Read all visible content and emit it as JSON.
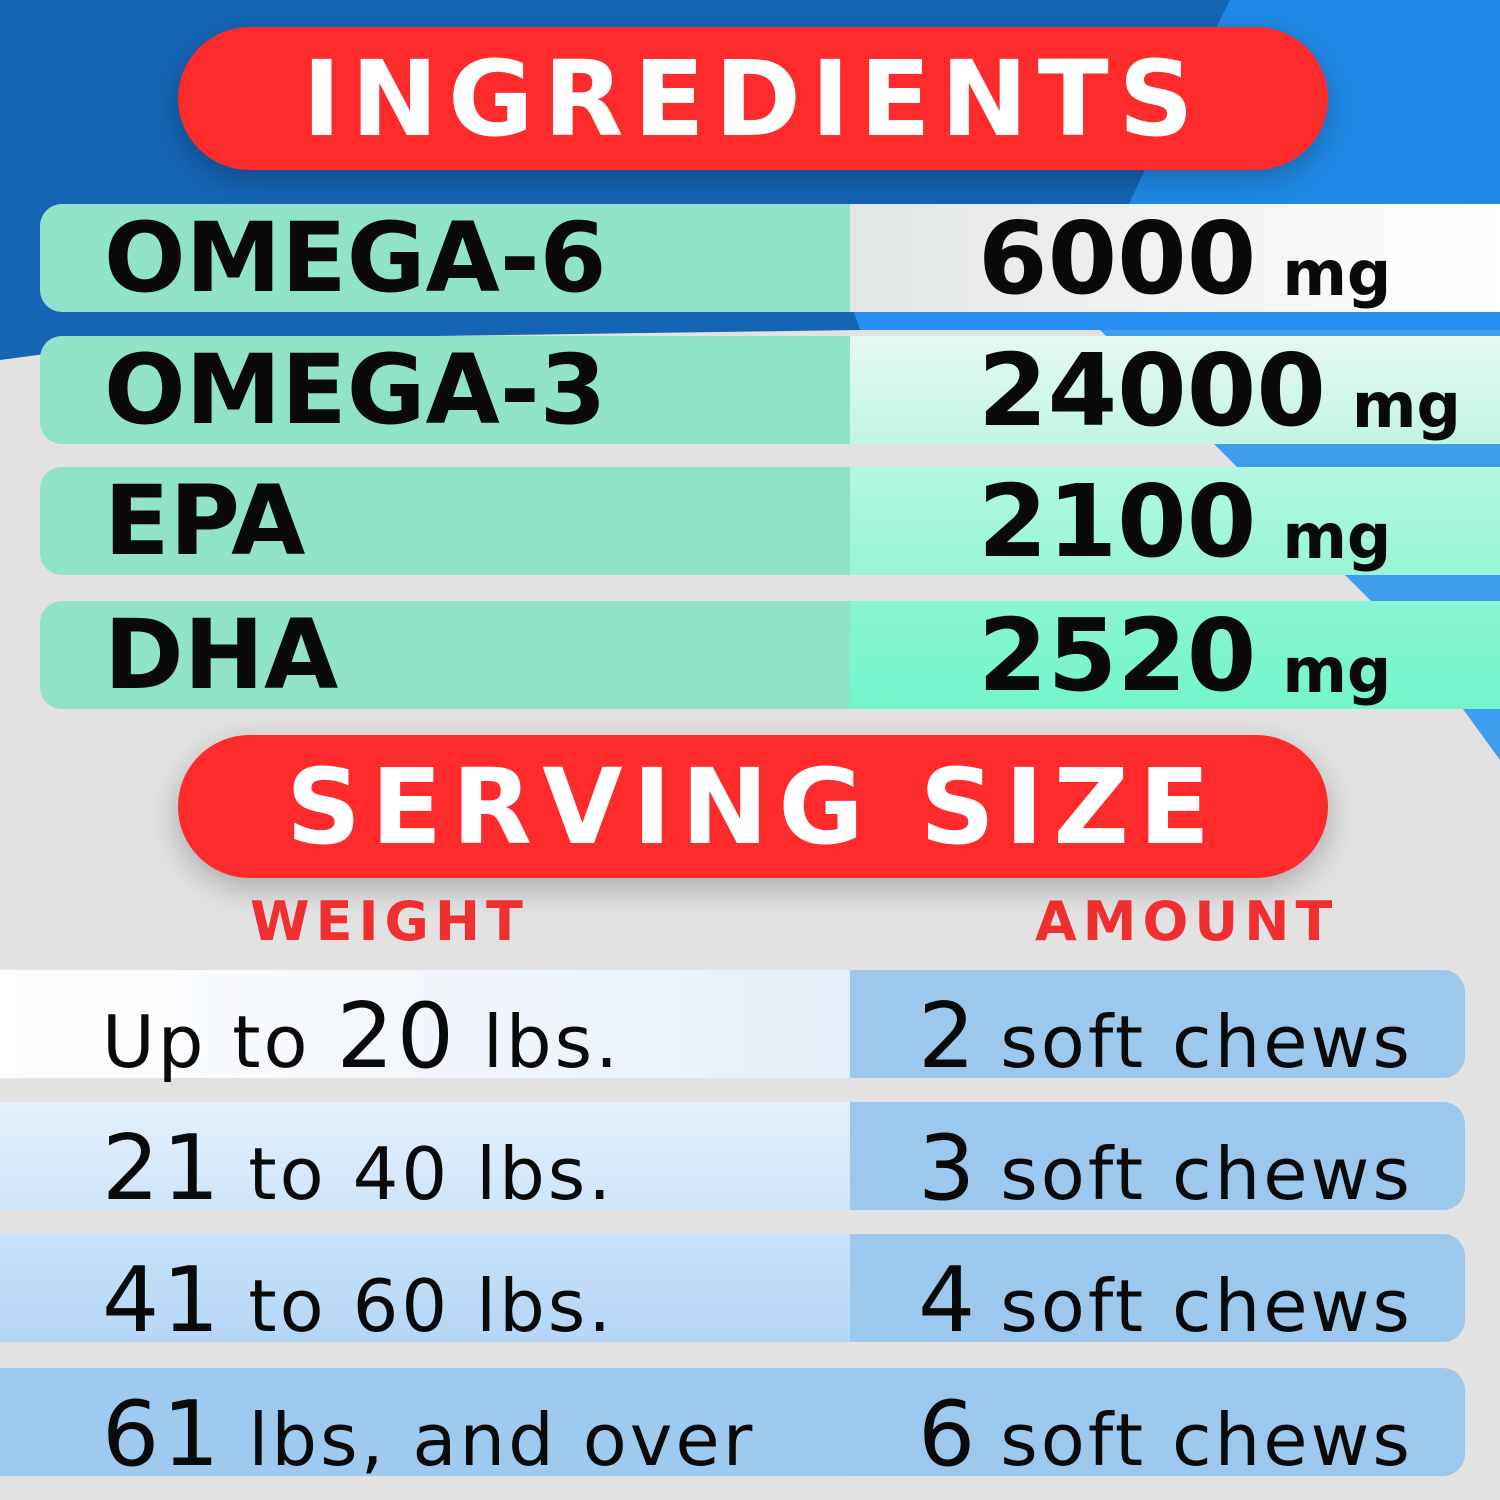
{
  "colors": {
    "accent_red": "#fd2b2b",
    "header_red": "#f03030",
    "dark_blue": "#1565b5",
    "mint": "#90e2c8",
    "light_blue": "#9cc8ee"
  },
  "ingredients": {
    "title": "INGREDIENTS",
    "rows": [
      {
        "name": "OMEGA-6",
        "amount": "6000",
        "unit": "mg"
      },
      {
        "name": "OMEGA-3",
        "amount": "24000",
        "unit": "mg"
      },
      {
        "name": "EPA",
        "amount": "2100",
        "unit": "mg"
      },
      {
        "name": "DHA",
        "amount": "2520",
        "unit": "mg"
      }
    ]
  },
  "serving": {
    "title": "SERVING SIZE",
    "weight_header": "WEIGHT",
    "amount_header": "AMOUNT",
    "rows": [
      {
        "pre": "Up to ",
        "num": "20",
        "post": " lbs.",
        "count": "2",
        "amount": "soft chews"
      },
      {
        "pre": "",
        "num": "21",
        "post": " to 40 lbs.",
        "count": "3",
        "amount": "soft chews"
      },
      {
        "pre": "",
        "num": "41",
        "post": " to 60 lbs.",
        "count": "4",
        "amount": "soft chews"
      },
      {
        "pre": "",
        "num": "61",
        "post": " lbs, and over",
        "count": "6",
        "amount": "soft chews"
      }
    ]
  }
}
